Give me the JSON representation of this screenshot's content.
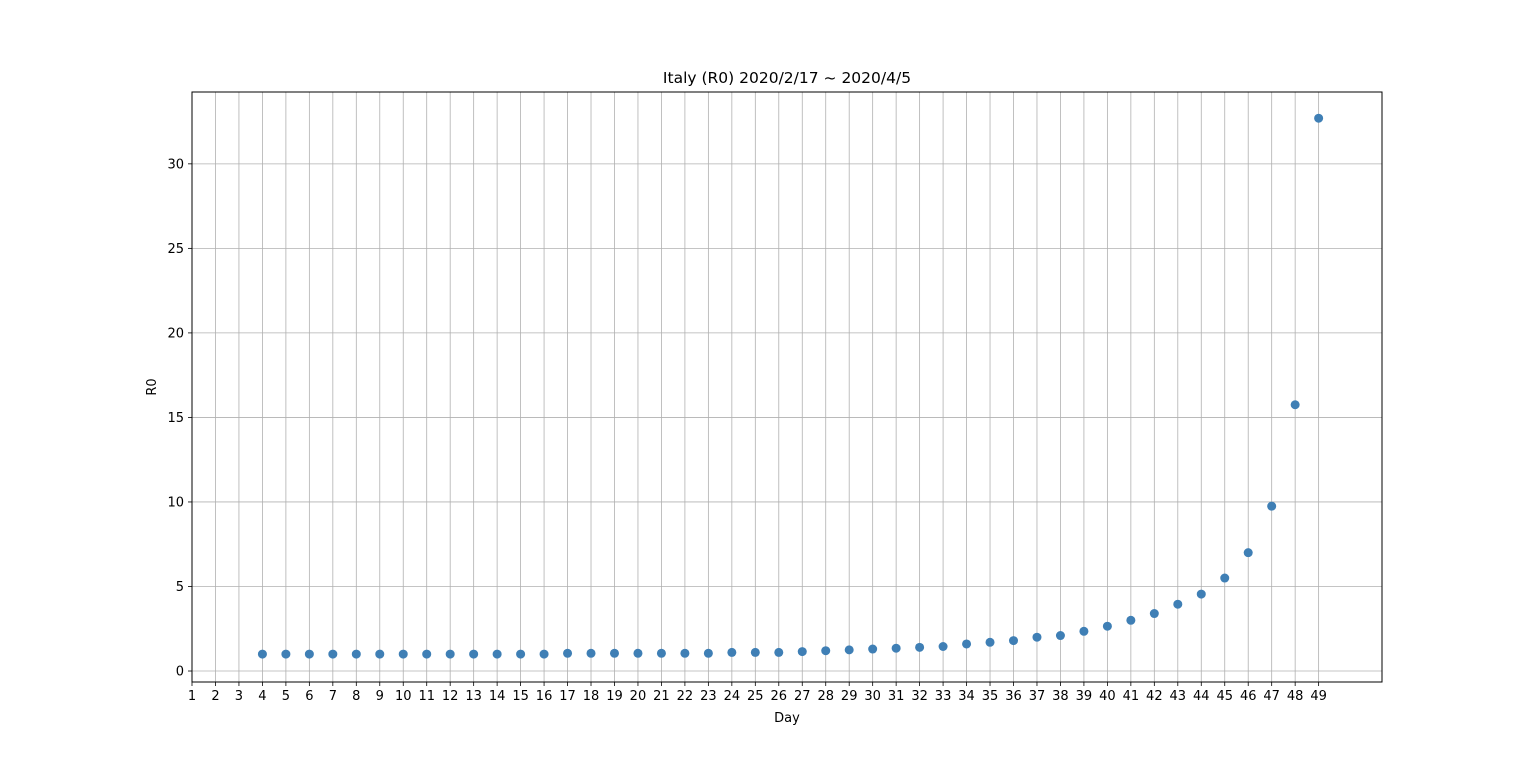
{
  "chart_data": {
    "type": "scatter",
    "title": "Italy (R0) 2020/2/17 ~ 2020/4/5",
    "xlabel": "Day",
    "ylabel": "R0",
    "xlim": [
      1,
      51.7
    ],
    "ylim": [
      -0.65,
      34.25
    ],
    "x_ticks": [
      1,
      2,
      3,
      4,
      5,
      6,
      7,
      8,
      9,
      10,
      11,
      12,
      13,
      14,
      15,
      16,
      17,
      18,
      19,
      20,
      21,
      22,
      23,
      24,
      25,
      26,
      27,
      28,
      29,
      30,
      31,
      32,
      33,
      34,
      35,
      36,
      37,
      38,
      39,
      40,
      41,
      42,
      43,
      44,
      45,
      46,
      47,
      48,
      49
    ],
    "y_ticks": [
      0,
      5,
      10,
      15,
      20,
      25,
      30
    ],
    "grid": true,
    "marker_color": "#3f7fb5",
    "series": [
      {
        "x": [
          4,
          5,
          6,
          7,
          8,
          9,
          10,
          11,
          12,
          13,
          14,
          15,
          16,
          17,
          18,
          19,
          20,
          21,
          22,
          23,
          24,
          25,
          26,
          27,
          28,
          29,
          30,
          31,
          32,
          33,
          34,
          35,
          36,
          37,
          38,
          39,
          40,
          41,
          42,
          43,
          44,
          45,
          46,
          47,
          48,
          49
        ],
        "values": [
          1.0,
          1.0,
          1.0,
          1.0,
          1.0,
          1.0,
          1.0,
          1.0,
          1.0,
          1.0,
          1.0,
          1.0,
          1.0,
          1.05,
          1.05,
          1.05,
          1.05,
          1.05,
          1.05,
          1.05,
          1.1,
          1.1,
          1.1,
          1.15,
          1.2,
          1.25,
          1.3,
          1.35,
          1.4,
          1.45,
          1.6,
          1.7,
          1.8,
          2.0,
          2.1,
          2.35,
          2.65,
          3.0,
          3.4,
          3.95,
          4.55,
          5.5,
          7.0,
          9.75,
          15.75,
          32.7
        ]
      }
    ]
  }
}
